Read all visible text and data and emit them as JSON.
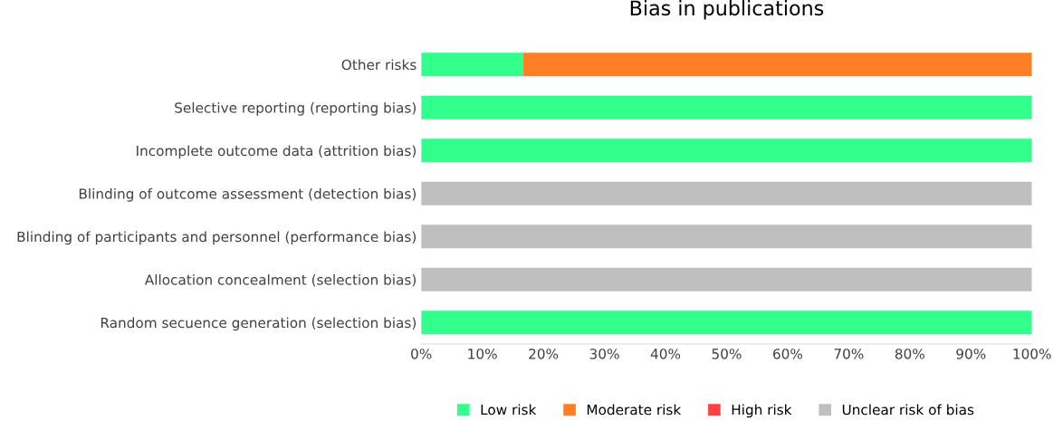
{
  "chart_data": {
    "type": "bar",
    "orientation": "horizontal",
    "stacked": true,
    "title": "Bias in publications",
    "categories": [
      "Other risks",
      "Selective reporting (reporting bias)",
      "Incomplete outcome data (attrition bias)",
      "Blinding of outcome assessment (detection bias)",
      "Blinding of participants and personnel (performance bias)",
      "Allocation concealment (selection bias)",
      "Random secuence generation (selection bias)"
    ],
    "series": [
      {
        "name": "Low risk",
        "color": "#33ff8c",
        "values": [
          16.7,
          100,
          100,
          0,
          0,
          0,
          100
        ]
      },
      {
        "name": "Moderate risk",
        "color": "#ff7f27",
        "values": [
          83.3,
          0,
          0,
          0,
          0,
          0,
          0
        ]
      },
      {
        "name": "High risk",
        "color": "#ff4040",
        "values": [
          0,
          0,
          0,
          0,
          0,
          0,
          0
        ]
      },
      {
        "name": "Unclear risk of bias",
        "color": "#bfbfbf",
        "values": [
          0,
          0,
          0,
          100,
          100,
          100,
          0
        ]
      }
    ],
    "xlim": [
      0,
      100
    ],
    "xticks": [
      {
        "value": 0,
        "label": "0%"
      },
      {
        "value": 10,
        "label": "10%"
      },
      {
        "value": 20,
        "label": "20%"
      },
      {
        "value": 30,
        "label": "30%"
      },
      {
        "value": 40,
        "label": "40%"
      },
      {
        "value": 50,
        "label": "50%"
      },
      {
        "value": 60,
        "label": "60%"
      },
      {
        "value": 70,
        "label": "70%"
      },
      {
        "value": 80,
        "label": "80%"
      },
      {
        "value": 90,
        "label": "90%"
      },
      {
        "value": 100,
        "label": "100%"
      }
    ],
    "legend": "bottom",
    "grid": false
  }
}
